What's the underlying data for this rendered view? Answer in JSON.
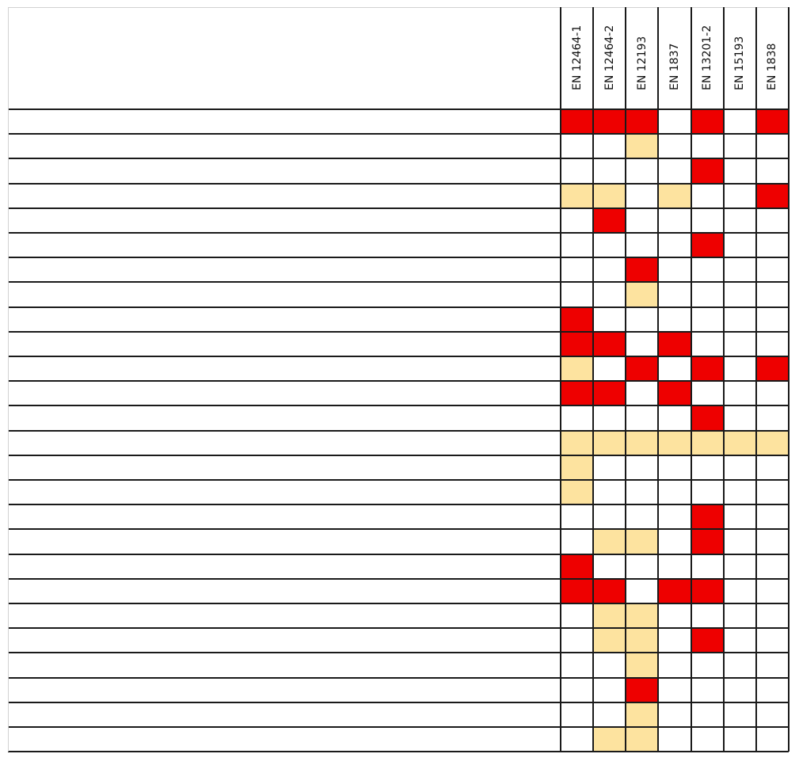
{
  "table": {
    "columns": [
      "EN 12464-1",
      "EN 12464-2",
      "EN 12193",
      "EN 1837",
      "EN 13201-2",
      "EN 15193",
      "EN 1838"
    ],
    "row_labels": [
      "",
      "",
      "",
      "",
      "",
      "",
      "",
      "",
      "",
      "",
      "",
      "",
      "",
      "",
      "",
      "",
      "",
      "",
      "",
      "",
      "",
      "",
      "",
      "",
      "",
      ""
    ],
    "legend": {
      "R": "#ee0000",
      "Y": "#fde39f",
      "": "#ffffff"
    },
    "rows": [
      [
        "R",
        "R",
        "R",
        "",
        "R",
        "",
        "R"
      ],
      [
        "",
        "",
        "Y",
        "",
        "",
        "",
        ""
      ],
      [
        "",
        "",
        "",
        "",
        "R",
        "",
        ""
      ],
      [
        "Y",
        "Y",
        "",
        "Y",
        "",
        "",
        "R"
      ],
      [
        "",
        "R",
        "",
        "",
        "",
        "",
        ""
      ],
      [
        "",
        "",
        "",
        "",
        "R",
        "",
        ""
      ],
      [
        "",
        "",
        "R",
        "",
        "",
        "",
        ""
      ],
      [
        "",
        "",
        "Y",
        "",
        "",
        "",
        ""
      ],
      [
        "R",
        "",
        "",
        "",
        "",
        "",
        ""
      ],
      [
        "R",
        "R",
        "",
        "R",
        "",
        "",
        ""
      ],
      [
        "Y",
        "",
        "R",
        "",
        "R",
        "",
        "R"
      ],
      [
        "R",
        "R",
        "",
        "R",
        "",
        "",
        ""
      ],
      [
        "",
        "",
        "",
        "",
        "R",
        "",
        ""
      ],
      [
        "Y",
        "Y",
        "Y",
        "Y",
        "Y",
        "Y",
        "Y"
      ],
      [
        "Y",
        "",
        "",
        "",
        "",
        "",
        ""
      ],
      [
        "Y",
        "",
        "",
        "",
        "",
        "",
        ""
      ],
      [
        "",
        "",
        "",
        "",
        "R",
        "",
        ""
      ],
      [
        "",
        "Y",
        "Y",
        "",
        "R",
        "",
        ""
      ],
      [
        "R",
        "",
        "",
        "",
        "",
        "",
        ""
      ],
      [
        "R",
        "R",
        "",
        "R",
        "R",
        "",
        ""
      ],
      [
        "",
        "Y",
        "Y",
        "",
        "",
        "",
        ""
      ],
      [
        "",
        "Y",
        "Y",
        "",
        "R",
        "",
        ""
      ],
      [
        "",
        "",
        "Y",
        "",
        "",
        "",
        ""
      ],
      [
        "",
        "",
        "R",
        "",
        "",
        "",
        ""
      ],
      [
        "",
        "",
        "Y",
        "",
        "",
        "",
        ""
      ],
      [
        "",
        "Y",
        "Y",
        "",
        "",
        "",
        ""
      ]
    ]
  }
}
